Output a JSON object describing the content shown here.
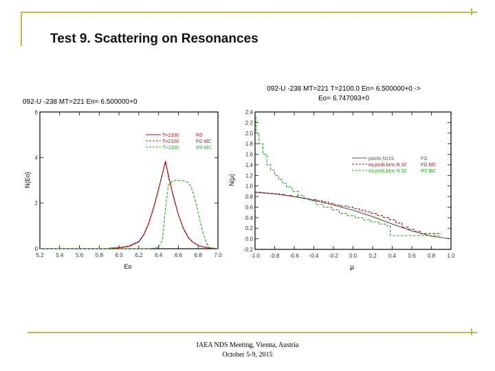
{
  "slide": {
    "title": "Test 9.   Scattering on Resonances",
    "footer_line1": "IAEA NDS Meeting, Vienna, Austria",
    "footer_line2": "October 5-9, 2015",
    "accent_color": "#c8b44a"
  },
  "chart_data": [
    {
      "type": "line",
      "title": "092-U -238   MT=221  En= 6.500000+0",
      "xlabel": "Eo",
      "ylabel": "N(Eo)",
      "xlim": [
        5.2,
        7.0
      ],
      "ylim": [
        0,
        6
      ],
      "xticks": [
        5.2,
        5.4,
        5.6,
        5.8,
        6.0,
        6.2,
        6.4,
        6.6,
        6.8,
        7.0
      ],
      "xtick_labels": [
        "5.2",
        "5.4",
        "5.6",
        "5.8",
        "6.0",
        "6.2",
        "6.4",
        "6.6",
        "6.8",
        "7.0"
      ],
      "yticks": [
        0,
        2,
        4,
        6
      ],
      "ytick_labels": [
        "0",
        "2",
        "4",
        "6"
      ],
      "legend_position": "upper-right",
      "series": [
        {
          "name": "FG",
          "legend_prefix": "T=2100",
          "color": "#cc0000",
          "dash": "solid",
          "x": [
            5.9,
            6.0,
            6.1,
            6.2,
            6.25,
            6.3,
            6.35,
            6.4,
            6.44,
            6.47,
            6.5,
            6.55,
            6.6,
            6.65,
            6.7,
            6.75,
            6.8,
            6.85,
            6.9,
            6.95,
            7.0
          ],
          "y": [
            0.02,
            0.04,
            0.1,
            0.3,
            0.6,
            1.1,
            1.8,
            2.6,
            3.3,
            3.85,
            3.2,
            2.3,
            1.5,
            0.9,
            0.5,
            0.28,
            0.15,
            0.08,
            0.04,
            0.02,
            0.01
          ]
        },
        {
          "name": "FG MC",
          "legend_prefix": "T=2100",
          "color": "#8b1a1a",
          "dash": "dashed",
          "x": [
            5.9,
            6.0,
            6.1,
            6.2,
            6.25,
            6.3,
            6.35,
            6.4,
            6.44,
            6.47,
            6.5,
            6.55,
            6.6,
            6.65,
            6.7,
            6.75,
            6.8,
            6.85,
            6.9,
            6.95,
            7.0
          ],
          "y": [
            0.02,
            0.05,
            0.12,
            0.32,
            0.62,
            1.12,
            1.82,
            2.62,
            3.32,
            3.8,
            3.15,
            2.28,
            1.48,
            0.88,
            0.48,
            0.27,
            0.14,
            0.08,
            0.04,
            0.02,
            0.01
          ]
        },
        {
          "name": "RS MC",
          "legend_prefix": "T=2100",
          "color": "#2ca02c",
          "dash": "dashed",
          "x": [
            5.2,
            6.0,
            6.3,
            6.4,
            6.44,
            6.47,
            6.5,
            6.55,
            6.6,
            6.65,
            6.7,
            6.73,
            6.76,
            6.79,
            6.82,
            6.85,
            6.88,
            6.91,
            7.0
          ],
          "y": [
            0.0,
            0.0,
            0.0,
            0.05,
            0.4,
            1.8,
            2.8,
            3.0,
            3.0,
            2.98,
            2.9,
            2.7,
            2.3,
            1.8,
            1.2,
            0.7,
            0.3,
            0.05,
            0.0
          ]
        }
      ]
    },
    {
      "type": "line",
      "title_line1": "092-U -238  MT=221  T=2100.0  En= 6.500000+0 ->",
      "title_line2": "Eo= 6.747093+0",
      "xlabel": "μ",
      "ylabel": "N(μ)",
      "xlim": [
        -1.0,
        1.0
      ],
      "ylim": [
        -0.2,
        2.4
      ],
      "xticks": [
        -1.0,
        -0.8,
        -0.6,
        -0.4,
        -0.2,
        0.0,
        0.2,
        0.4,
        0.6,
        0.8,
        1.0
      ],
      "xtick_labels": [
        "-1.0",
        "-0.8",
        "-0.6",
        "-0.4",
        "-0.2",
        "0.0",
        "0.2",
        "0.4",
        "0.6",
        "0.8",
        "1.0"
      ],
      "yticks": [
        -0.2,
        0.0,
        0.2,
        0.4,
        0.6,
        0.8,
        1.0,
        1.2,
        1.4,
        1.6,
        1.8,
        2.0,
        2.2,
        2.4
      ],
      "ytick_labels": [
        "-0.2",
        "0.0",
        "0.2",
        "0.4",
        "0.6",
        "0.8",
        "1.0",
        "1.2",
        "1.4",
        "1.6",
        "1.8",
        "2.0",
        "2.2",
        "2.4"
      ],
      "legend_position": "right",
      "series": [
        {
          "name": "FG",
          "legend_prefix": "points  N101",
          "color": "#555555",
          "dash": "solid",
          "x": [
            -1.0,
            -0.8,
            -0.6,
            -0.4,
            -0.2,
            0.0,
            0.2,
            0.4,
            0.6,
            0.8,
            1.0
          ],
          "y": [
            0.88,
            0.85,
            0.8,
            0.73,
            0.64,
            0.54,
            0.42,
            0.28,
            0.15,
            0.05,
            0.0
          ]
        },
        {
          "name": "FG MC",
          "legend_prefix": "eq.prob.bins N 32",
          "color": "#8b1a1a",
          "dash": "dashed",
          "step": true,
          "x": [
            -1.0,
            -0.9375,
            -0.875,
            -0.8125,
            -0.75,
            -0.6875,
            -0.625,
            -0.5625,
            -0.5,
            -0.4375,
            -0.375,
            -0.3125,
            -0.25,
            -0.1875,
            -0.125,
            -0.0625,
            0.0,
            0.0625,
            0.125,
            0.1875,
            0.25,
            0.3125,
            0.375,
            0.4375,
            0.5,
            0.5625,
            0.625,
            0.6875,
            0.75,
            0.8125,
            0.875
          ],
          "y": [
            0.88,
            0.87,
            0.86,
            0.85,
            0.84,
            0.82,
            0.8,
            0.78,
            0.76,
            0.74,
            0.72,
            0.7,
            0.67,
            0.64,
            0.62,
            0.6,
            0.57,
            0.54,
            0.51,
            0.48,
            0.44,
            0.4,
            0.36,
            0.3,
            0.22,
            0.18,
            0.14,
            0.1,
            0.1,
            0.1,
            0.1
          ]
        },
        {
          "name": "RS MC",
          "legend_prefix": "eq.prob.bins N 32",
          "color": "#2ca02c",
          "dash": "dashed",
          "step": true,
          "x": [
            -1.0,
            -0.99,
            -0.96,
            -0.92,
            -0.88,
            -0.84,
            -0.8,
            -0.76,
            -0.72,
            -0.68,
            -0.62,
            -0.56,
            -0.5,
            -0.44,
            -0.38,
            -0.3,
            -0.22,
            -0.14,
            -0.06,
            0.02,
            0.1,
            0.18,
            0.26,
            0.34,
            0.38
          ],
          "y": [
            2.3,
            2.0,
            1.8,
            1.6,
            1.4,
            1.3,
            1.2,
            1.12,
            1.05,
            0.98,
            0.9,
            0.82,
            0.76,
            0.72,
            0.65,
            0.6,
            0.55,
            0.48,
            0.44,
            0.4,
            0.36,
            0.32,
            0.28,
            0.25,
            0.06
          ]
        }
      ]
    }
  ]
}
